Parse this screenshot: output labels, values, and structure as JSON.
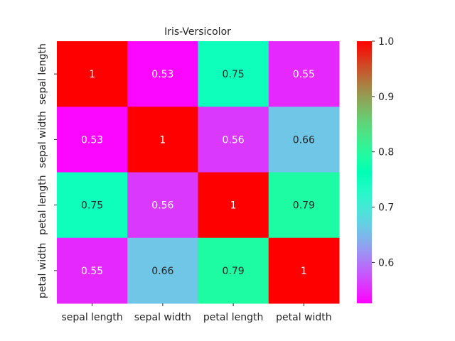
{
  "chart_data": {
    "type": "heatmap",
    "title": "Iris-Versicolor",
    "rows": [
      "sepal length",
      "sepal width",
      "petal length",
      "petal width"
    ],
    "columns": [
      "sepal length",
      "sepal width",
      "petal length",
      "petal width"
    ],
    "values": [
      [
        1,
        0.53,
        0.75,
        0.55
      ],
      [
        0.53,
        1,
        0.56,
        0.66
      ],
      [
        0.75,
        0.56,
        1,
        0.79
      ],
      [
        0.55,
        0.66,
        0.79,
        1
      ]
    ],
    "cell_labels": [
      [
        "1",
        "0.53",
        "0.75",
        "0.55"
      ],
      [
        "0.53",
        "1",
        "0.56",
        "0.66"
      ],
      [
        "0.75",
        "0.56",
        "1",
        "0.79"
      ],
      [
        "0.55",
        "0.66",
        "0.79",
        "1"
      ]
    ],
    "colormap": "rainbow",
    "colorbar": {
      "range": [
        0.526,
        1.0
      ],
      "ticks": [
        "0.6",
        "0.7",
        "0.8",
        "0.9",
        "1.0"
      ],
      "tick_values": [
        0.6,
        0.7,
        0.8,
        0.9,
        1.0
      ]
    },
    "legend": "right"
  }
}
